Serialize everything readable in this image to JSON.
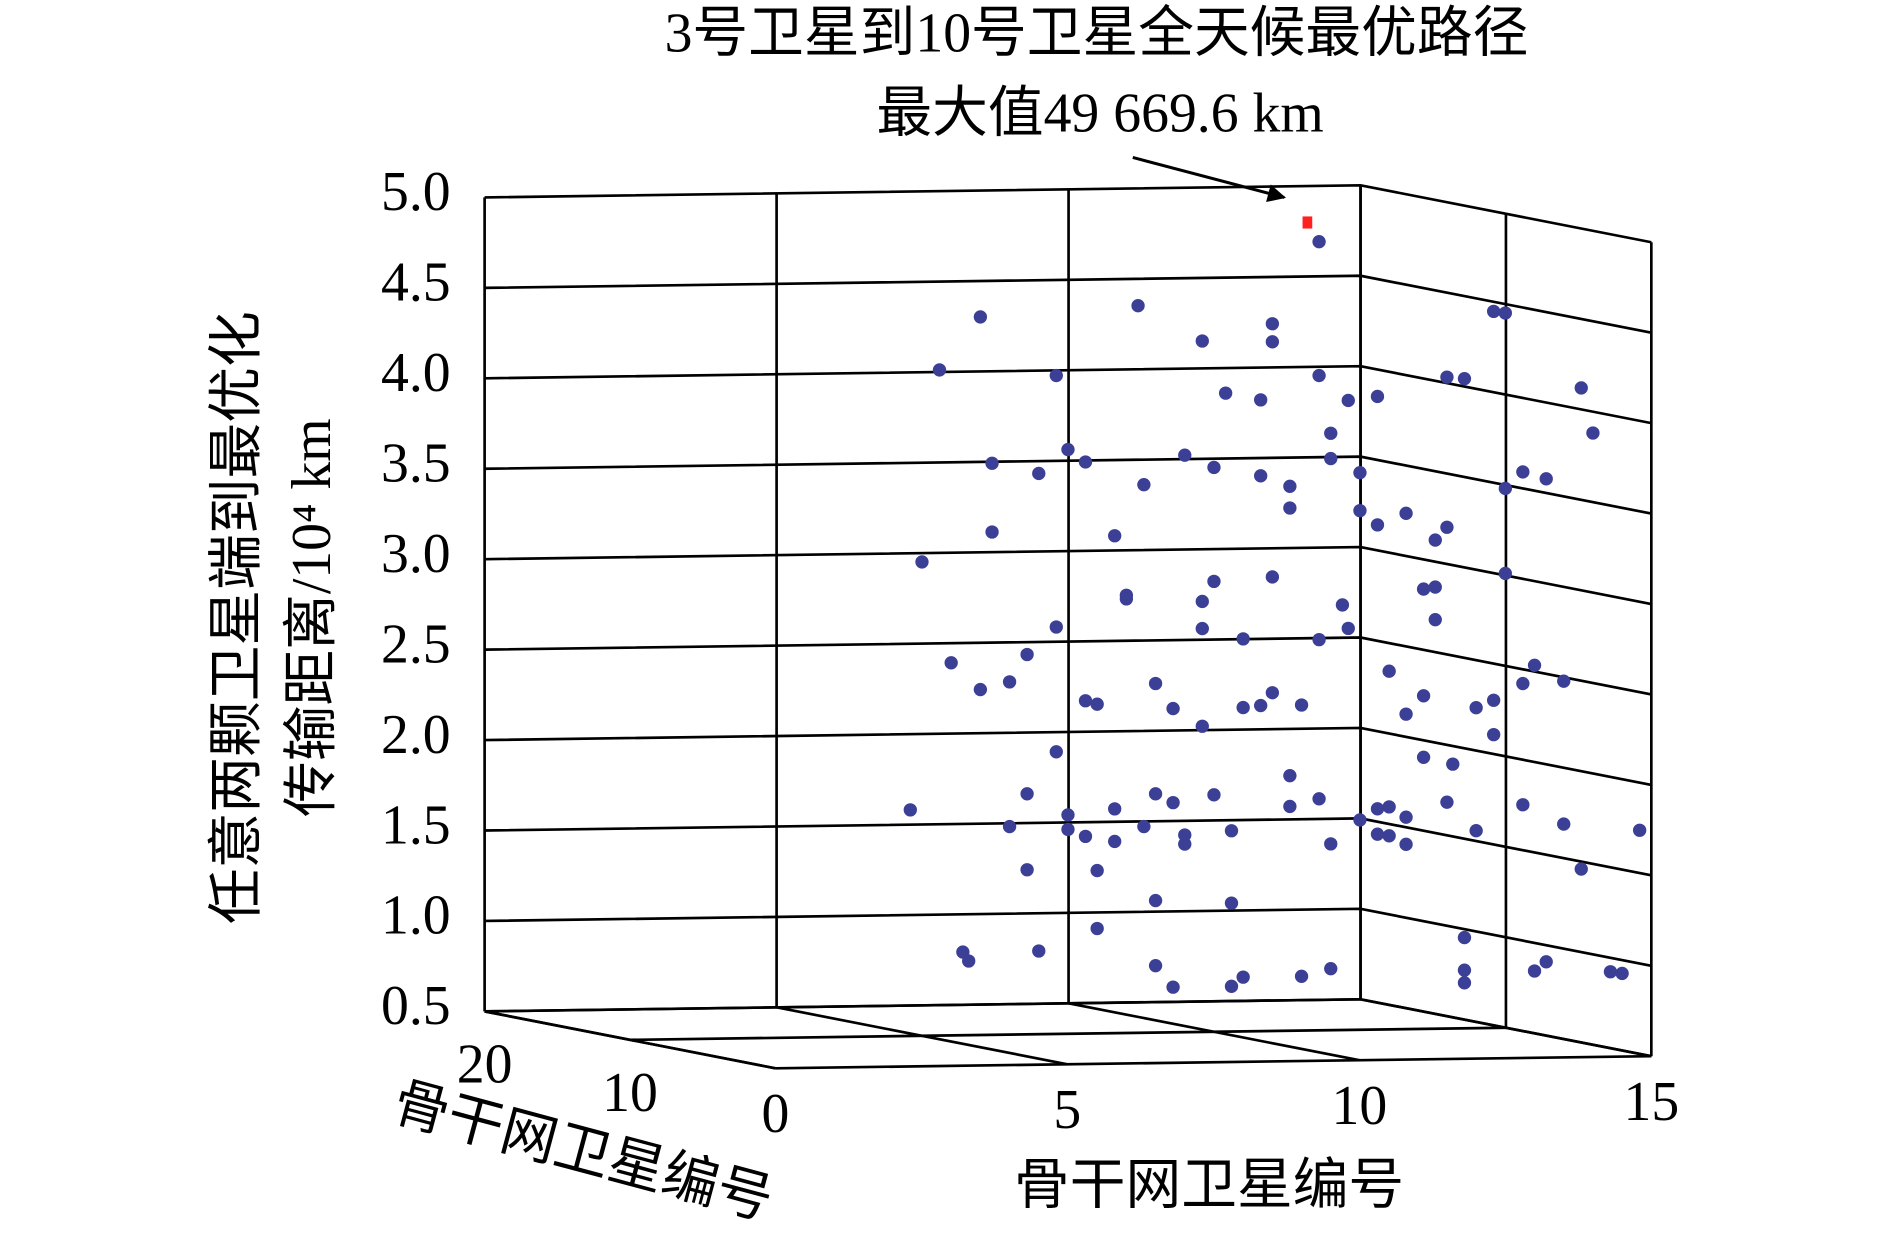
{
  "chart_data": {
    "type": "scatter3d",
    "annotation": [
      "3号卫星到10号卫星全天候最优路径",
      "最大值49 669.6 km"
    ],
    "xlabel": "骨干网卫星编号",
    "ylabel": "骨干网卫星编号",
    "zlabel": [
      "任意两颗卫星端到最优化",
      "传输距离/10⁴ km"
    ],
    "xlim": [
      0,
      15
    ],
    "xticks": [
      0,
      5,
      10,
      15
    ],
    "ylim": [
      0,
      20
    ],
    "yticks": [
      10,
      20
    ],
    "zlim": [
      0.5,
      5.0
    ],
    "zticks": [
      0.5,
      {
        "value": 1.0,
        "label": "1.0"
      },
      1.5,
      {
        "value": 2.0,
        "label": "2.0"
      },
      2.5,
      {
        "value": 3.0,
        "label": "3.0"
      },
      3.5,
      {
        "value": 4.0,
        "label": "4.0"
      },
      4.5,
      {
        "value": 5.0,
        "label": "5.0"
      }
    ],
    "grid": true,
    "series": [
      {
        "color": "#3b3f96",
        "marker": "circle",
        "x": [
          11.8,
          6.0,
          8.7,
          9.8,
          11.0,
          11.0,
          5.3,
          7.3,
          11.8,
          11.5,
          11.8,
          12.3,
          12.5,
          10.2,
          10.8,
          12.3,
          12.8,
          13.8,
          12.0,
          14.0,
          6.2,
          7.5,
          7.8,
          9.5,
          10.0,
          12.0,
          7.0,
          8.8,
          10.8,
          11.3,
          12.5,
          12.8,
          13.2,
          12.5,
          6.2,
          8.3,
          11.3,
          12.5,
          12.8,
          10.8,
          11.3,
          11.5,
          5.0,
          8.5,
          8.5,
          9.8,
          10.0,
          11.0,
          12.5,
          11.1,
          11.3,
          11.3,
          12.2,
          7.3,
          9.8,
          10.5,
          11.8,
          12.3,
          5.5,
          6.8,
          6.0,
          6.5,
          9.0,
          11.0,
          13.0,
          12.8,
          13.5,
          13.0,
          7.8,
          8.0,
          9.3,
          10.5,
          10.8,
          11.5,
          11.1,
          10.8,
          12.0,
          12.3,
          9.8,
          12.3,
          7.3,
          11.1,
          11.6,
          11.3,
          6.8,
          9.0,
          9.3,
          10.0,
          11.8,
          11.3,
          12.8,
          13.0,
          10.8,
          11.5,
          12.8,
          4.8,
          8.3,
          7.5,
          8.8,
          6.5,
          7.5,
          7.8,
          8.3,
          9.5,
          9.5,
          10.3,
          12.0,
          12.5,
          12.8,
          13.0,
          10.8,
          12.0,
          13.5,
          14.8,
          6.8,
          8.0,
          13.8,
          9.0,
          10.3,
          8.0,
          5.7,
          5.8,
          7.0,
          9.0,
          9.3,
          10.5,
          10.3,
          11.5,
          12.0,
          11.8,
          11.8,
          11.8,
          13.0,
          13.2,
          14.3,
          14.5
        ],
        "y": [
          10,
          10,
          10,
          10,
          10,
          10,
          10,
          10,
          10,
          0,
          0,
          0,
          0,
          10,
          10,
          10,
          10,
          0,
          10,
          0,
          10,
          10,
          10,
          10,
          10,
          10,
          10,
          10,
          10,
          10,
          10,
          0,
          0,
          0,
          10,
          10,
          10,
          10,
          10,
          0,
          0,
          0,
          10,
          10,
          10,
          10,
          10,
          10,
          0,
          0,
          0,
          0,
          10,
          10,
          10,
          10,
          10,
          10,
          10,
          10,
          10,
          10,
          10,
          10,
          0,
          0,
          0,
          10,
          10,
          10,
          10,
          10,
          10,
          10,
          0,
          0,
          0,
          0,
          10,
          0,
          10,
          0,
          0,
          10,
          10,
          10,
          10,
          10,
          10,
          10,
          10,
          10,
          0,
          0,
          0,
          10,
          10,
          10,
          10,
          10,
          10,
          10,
          10,
          10,
          10,
          10,
          10,
          10,
          10,
          10,
          0,
          0,
          0,
          0,
          10,
          10,
          0,
          10,
          10,
          10,
          10,
          10,
          10,
          10,
          10,
          10,
          10,
          10,
          10,
          0,
          0,
          0,
          0,
          0,
          0,
          0
        ],
        "z": [
          4.86,
          4.47,
          4.52,
          4.32,
          4.41,
          4.31,
          4.18,
          4.14,
          4.12,
          4.27,
          4.26,
          4.63,
          4.62,
          4.03,
          3.99,
          3.98,
          4.0,
          4.2,
          3.8,
          3.95,
          3.66,
          3.73,
          3.66,
          3.69,
          3.62,
          3.66,
          3.6,
          3.53,
          3.57,
          3.51,
          3.58,
          3.74,
          3.7,
          3.65,
          3.28,
          3.25,
          3.39,
          3.37,
          3.29,
          3.52,
          3.37,
          3.44,
          3.12,
          2.92,
          2.9,
          2.88,
          2.99,
          3.01,
          3.18,
          3.1,
          3.11,
          2.93,
          2.85,
          2.75,
          2.73,
          2.67,
          2.66,
          2.72,
          2.56,
          2.6,
          2.41,
          2.45,
          2.43,
          2.37,
          2.67,
          2.57,
          2.58,
          2.48,
          2.34,
          2.32,
          2.29,
          2.29,
          2.3,
          2.3,
          2.51,
          2.41,
          2.44,
          2.48,
          2.19,
          2.29,
          2.06,
          2.17,
          2.13,
          1.91,
          1.83,
          1.82,
          1.77,
          1.81,
          1.78,
          1.74,
          1.72,
          1.73,
          1.84,
          1.92,
          1.9,
          1.75,
          1.74,
          1.71,
          1.64,
          1.65,
          1.63,
          1.59,
          1.56,
          1.59,
          1.54,
          1.61,
          1.53,
          1.66,
          1.58,
          1.57,
          1.69,
          1.76,
          1.79,
          1.75,
          1.41,
          1.4,
          1.54,
          1.23,
          1.21,
          1.08,
          0.96,
          0.91,
          0.96,
          0.87,
          0.75,
          0.8,
          0.75,
          0.8,
          0.84,
          1.17,
          0.99,
          0.92,
          0.98,
          1.03,
          0.97,
          0.96
        ]
      },
      {
        "color": "#ff2020",
        "marker": "square",
        "x": [
          11.6
        ],
        "y": [
          10
        ],
        "z": [
          4.967
        ]
      }
    ]
  }
}
